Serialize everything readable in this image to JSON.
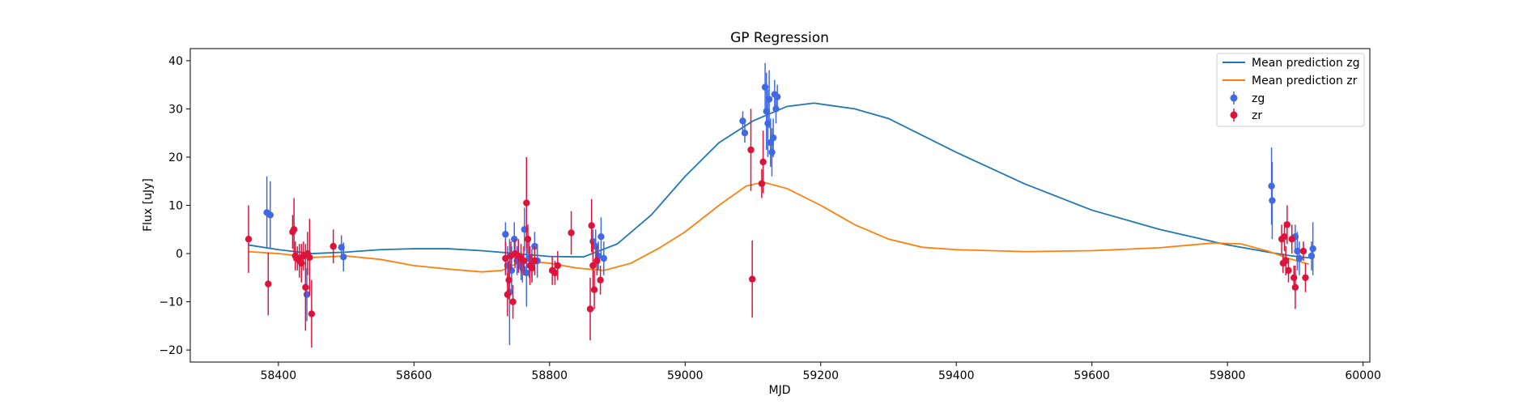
{
  "chart_data": {
    "type": "scatter",
    "title": "GP Regression",
    "xlabel": "MJD",
    "ylabel": "Flux [uJy]",
    "xlim": [
      58270,
      60010
    ],
    "ylim": [
      -22.5,
      42.5
    ],
    "xticks": [
      58400,
      58600,
      58800,
      59000,
      59200,
      59400,
      59600,
      59800,
      60000
    ],
    "yticks": [
      -20,
      -10,
      0,
      10,
      20,
      30,
      40
    ],
    "grid": false,
    "legend_position": "top-right",
    "series": [
      {
        "name": "Mean prediction zg",
        "kind": "line",
        "color": "#1f77b4",
        "x": [
          58355,
          58400,
          58450,
          58500,
          58550,
          58600,
          58650,
          58700,
          58750,
          58800,
          58850,
          58900,
          58950,
          59000,
          59050,
          59100,
          59150,
          59190,
          59250,
          59300,
          59400,
          59500,
          59600,
          59700,
          59800,
          59860,
          59890,
          59920
        ],
        "y": [
          1.8,
          0.8,
          0,
          0.3,
          0.8,
          1.0,
          1.0,
          0.6,
          0,
          -0.6,
          -0.7,
          2.0,
          8.0,
          16.0,
          23.0,
          27.5,
          30.5,
          31.2,
          30.0,
          28.0,
          21.0,
          14.5,
          9.0,
          5.0,
          1.8,
          0.3,
          -0.4,
          -0.9
        ]
      },
      {
        "name": "Mean prediction zr",
        "kind": "line",
        "color": "#ff7f0e",
        "x": [
          58355,
          58400,
          58450,
          58500,
          58550,
          58600,
          58650,
          58700,
          58730,
          58760,
          58800,
          58840,
          58880,
          58920,
          58960,
          59000,
          59050,
          59090,
          59115,
          59150,
          59200,
          59250,
          59300,
          59350,
          59400,
          59500,
          59600,
          59700,
          59780,
          59820,
          59860,
          59890,
          59920
        ],
        "y": [
          0.4,
          0,
          -0.8,
          -0.5,
          -1.2,
          -2.5,
          -3.2,
          -3.8,
          -3.5,
          -1.5,
          -2.0,
          -3.0,
          -3.5,
          -2.0,
          1.0,
          4.5,
          10.0,
          14.0,
          14.8,
          13.5,
          10.0,
          6.0,
          3.0,
          1.3,
          0.8,
          0.4,
          0.6,
          1.2,
          2.2,
          2.0,
          0.5,
          -1.0,
          -2.2
        ]
      },
      {
        "name": "zg",
        "kind": "errorbar",
        "color": "#4169e1",
        "x": [
          58383,
          58388,
          58442,
          58493,
          58496,
          58735,
          58738,
          58741,
          58744,
          58748,
          58752,
          58758,
          58760,
          58763,
          58766,
          58770,
          58774,
          58778,
          58782,
          58864,
          58868,
          58872,
          58876,
          58880,
          59085,
          59088,
          59118,
          59120,
          59122,
          59124,
          59126,
          59128,
          59130,
          59132,
          59134,
          59136,
          59865,
          59866,
          59900,
          59903,
          59906,
          59924,
          59926
        ],
        "y": [
          8.5,
          8.0,
          -8.5,
          1.3,
          -0.7,
          4.0,
          -2.5,
          -8.0,
          -3.5,
          3.0,
          -1.5,
          -2.5,
          -3.0,
          5.0,
          -4.0,
          -1.0,
          -2.0,
          1.5,
          -1.5,
          2.5,
          1.5,
          -0.5,
          3.5,
          -1.0,
          27.5,
          25.0,
          34.5,
          29.5,
          27.0,
          32.0,
          23.0,
          21.0,
          24.0,
          33.0,
          30.0,
          32.5,
          14.0,
          11.0,
          3.5,
          0.5,
          -1.0,
          -0.5,
          1.0
        ],
        "yerr": [
          7.5,
          7.0,
          5.5,
          2.5,
          3.0,
          2.5,
          4.0,
          11.0,
          5.0,
          3.5,
          3.0,
          3.0,
          3.0,
          4.5,
          7.0,
          4.0,
          3.0,
          3.0,
          3.5,
          2.5,
          3.5,
          3.0,
          4.0,
          3.5,
          2.0,
          2.0,
          5.0,
          8.0,
          7.0,
          6.0,
          5.0,
          5.0,
          4.0,
          3.0,
          3.0,
          2.5,
          8.0,
          8.0,
          2.5,
          4.0,
          3.5,
          3.0,
          5.5
        ]
      },
      {
        "name": "zr",
        "kind": "errorbar",
        "color": "#dc143c",
        "x": [
          58356,
          58385,
          58421,
          58423,
          58425,
          58428,
          58431,
          58434,
          58437,
          58440,
          58443,
          58446,
          58449,
          58481,
          58735,
          58738,
          58740,
          58743,
          58746,
          58749,
          58754,
          58758,
          58762,
          58766,
          58768,
          58771,
          58774,
          58778,
          58804,
          58808,
          58812,
          58832,
          58860,
          58862,
          58864,
          58866,
          58870,
          58875,
          59097,
          59099,
          59113,
          59115,
          59880,
          59882,
          59884,
          59886,
          59888,
          59890,
          59895,
          59898,
          59900,
          59912,
          59915
        ],
        "y": [
          3.0,
          -6.3,
          4.5,
          5.0,
          -0.5,
          -1.0,
          -1.5,
          -2.0,
          -0.5,
          -7.0,
          0.0,
          -0.8,
          -12.5,
          1.5,
          -1.0,
          -8.5,
          -5.5,
          -0.5,
          -10.0,
          0.0,
          -0.5,
          -1.0,
          -1.5,
          10.5,
          3.0,
          -2.5,
          -3.0,
          -1.5,
          -3.5,
          -4.0,
          -2.5,
          4.3,
          -11.5,
          5.8,
          -2.5,
          -7.5,
          -1.5,
          -5.5,
          21.5,
          -5.3,
          14.5,
          19.0,
          3.0,
          -2.0,
          3.5,
          -1.5,
          6.0,
          -3.5,
          3.0,
          -5.0,
          -7.0,
          0.5,
          -5.0
        ],
        "yerr": [
          7.0,
          6.5,
          3.5,
          6.5,
          3.0,
          2.5,
          3.5,
          4.0,
          3.0,
          9.0,
          4.5,
          8.0,
          7.0,
          3.5,
          3.5,
          4.5,
          4.0,
          3.0,
          3.5,
          3.0,
          3.5,
          3.0,
          3.0,
          9.5,
          3.0,
          4.0,
          3.0,
          3.0,
          3.0,
          2.5,
          3.0,
          4.5,
          6.5,
          5.5,
          5.0,
          4.0,
          3.0,
          3.0,
          8.5,
          8.0,
          3.0,
          6.5,
          3.0,
          2.0,
          3.0,
          3.0,
          4.0,
          2.5,
          3.0,
          2.5,
          4.5,
          2.0,
          3.0
        ]
      }
    ]
  }
}
